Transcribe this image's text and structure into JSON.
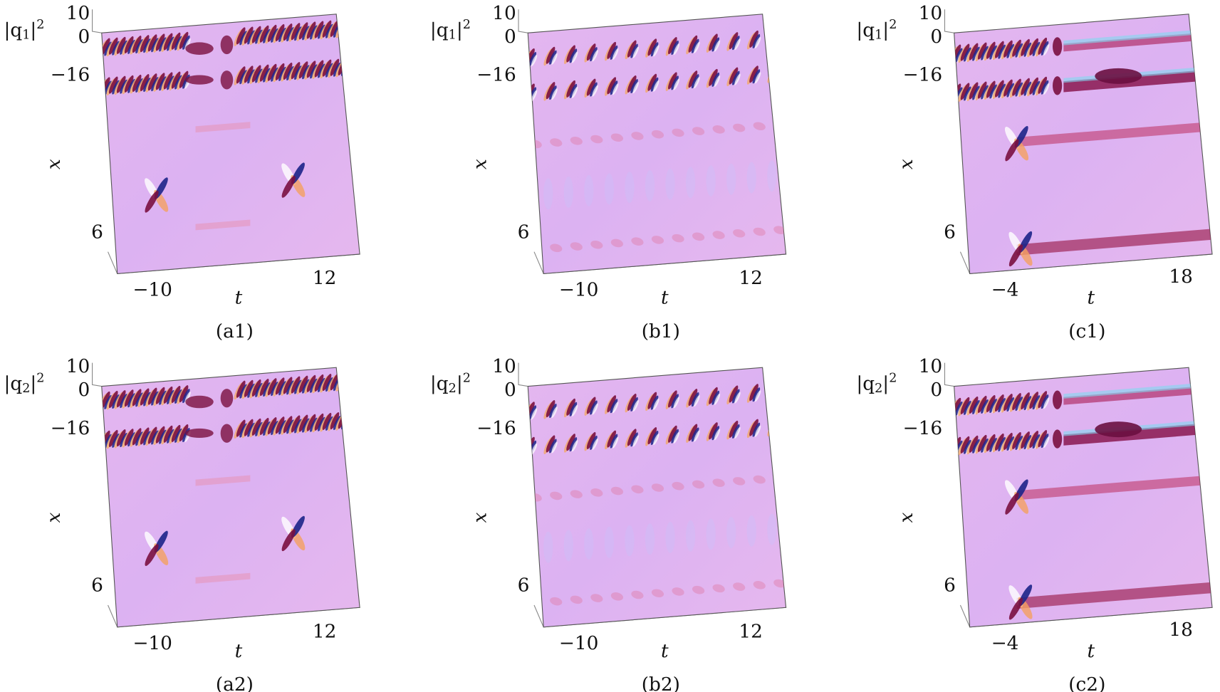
{
  "panels": [
    {
      "kind": "a",
      "caption": "(a1)",
      "z_label": {
        "open": "|q",
        "sub": "1",
        "close": "|",
        "sup": "2"
      },
      "z_ticks": [
        "10",
        "0",
        "−16"
      ],
      "x_label": "x",
      "x_ticks": [
        "6"
      ],
      "t_label": "t",
      "t_ticks": [
        "−10",
        "12"
      ]
    },
    {
      "kind": "b",
      "caption": "(b1)",
      "z_label": {
        "open": "|q",
        "sub": "1",
        "close": "|",
        "sup": "2"
      },
      "z_ticks": [
        "10",
        "0",
        "−16"
      ],
      "x_label": "x",
      "x_ticks": [
        "6"
      ],
      "t_label": "t",
      "t_ticks": [
        "−10",
        "12"
      ]
    },
    {
      "kind": "c",
      "caption": "(c1)",
      "z_label": {
        "open": "|q",
        "sub": "1",
        "close": "|",
        "sup": "2"
      },
      "z_ticks": [
        "10",
        "0",
        "−16"
      ],
      "x_label": "x",
      "x_ticks": [
        "6"
      ],
      "t_label": "t",
      "t_ticks": [
        "−4",
        "18"
      ]
    },
    {
      "kind": "a",
      "caption": "(a2)",
      "z_label": {
        "open": "|q",
        "sub": "2",
        "close": "|",
        "sup": "2"
      },
      "z_ticks": [
        "10",
        "0",
        "−16"
      ],
      "x_label": "x",
      "x_ticks": [
        "6"
      ],
      "t_label": "t",
      "t_ticks": [
        "−10",
        "12"
      ]
    },
    {
      "kind": "b",
      "caption": "(b2)",
      "z_label": {
        "open": "|q",
        "sub": "2",
        "close": "|",
        "sup": "2"
      },
      "z_ticks": [
        "10",
        "0",
        "−16"
      ],
      "x_label": "x",
      "x_ticks": [
        "6"
      ],
      "t_label": "t",
      "t_ticks": [
        "−10",
        "12"
      ]
    },
    {
      "kind": "c",
      "caption": "(c2)",
      "z_label": {
        "open": "|q",
        "sub": "2",
        "close": "|",
        "sup": "2"
      },
      "z_ticks": [
        "10",
        "0",
        "−16"
      ],
      "x_label": "x",
      "x_ticks": [
        "6"
      ],
      "t_label": "t",
      "t_ticks": [
        "−4",
        "18"
      ]
    }
  ]
}
